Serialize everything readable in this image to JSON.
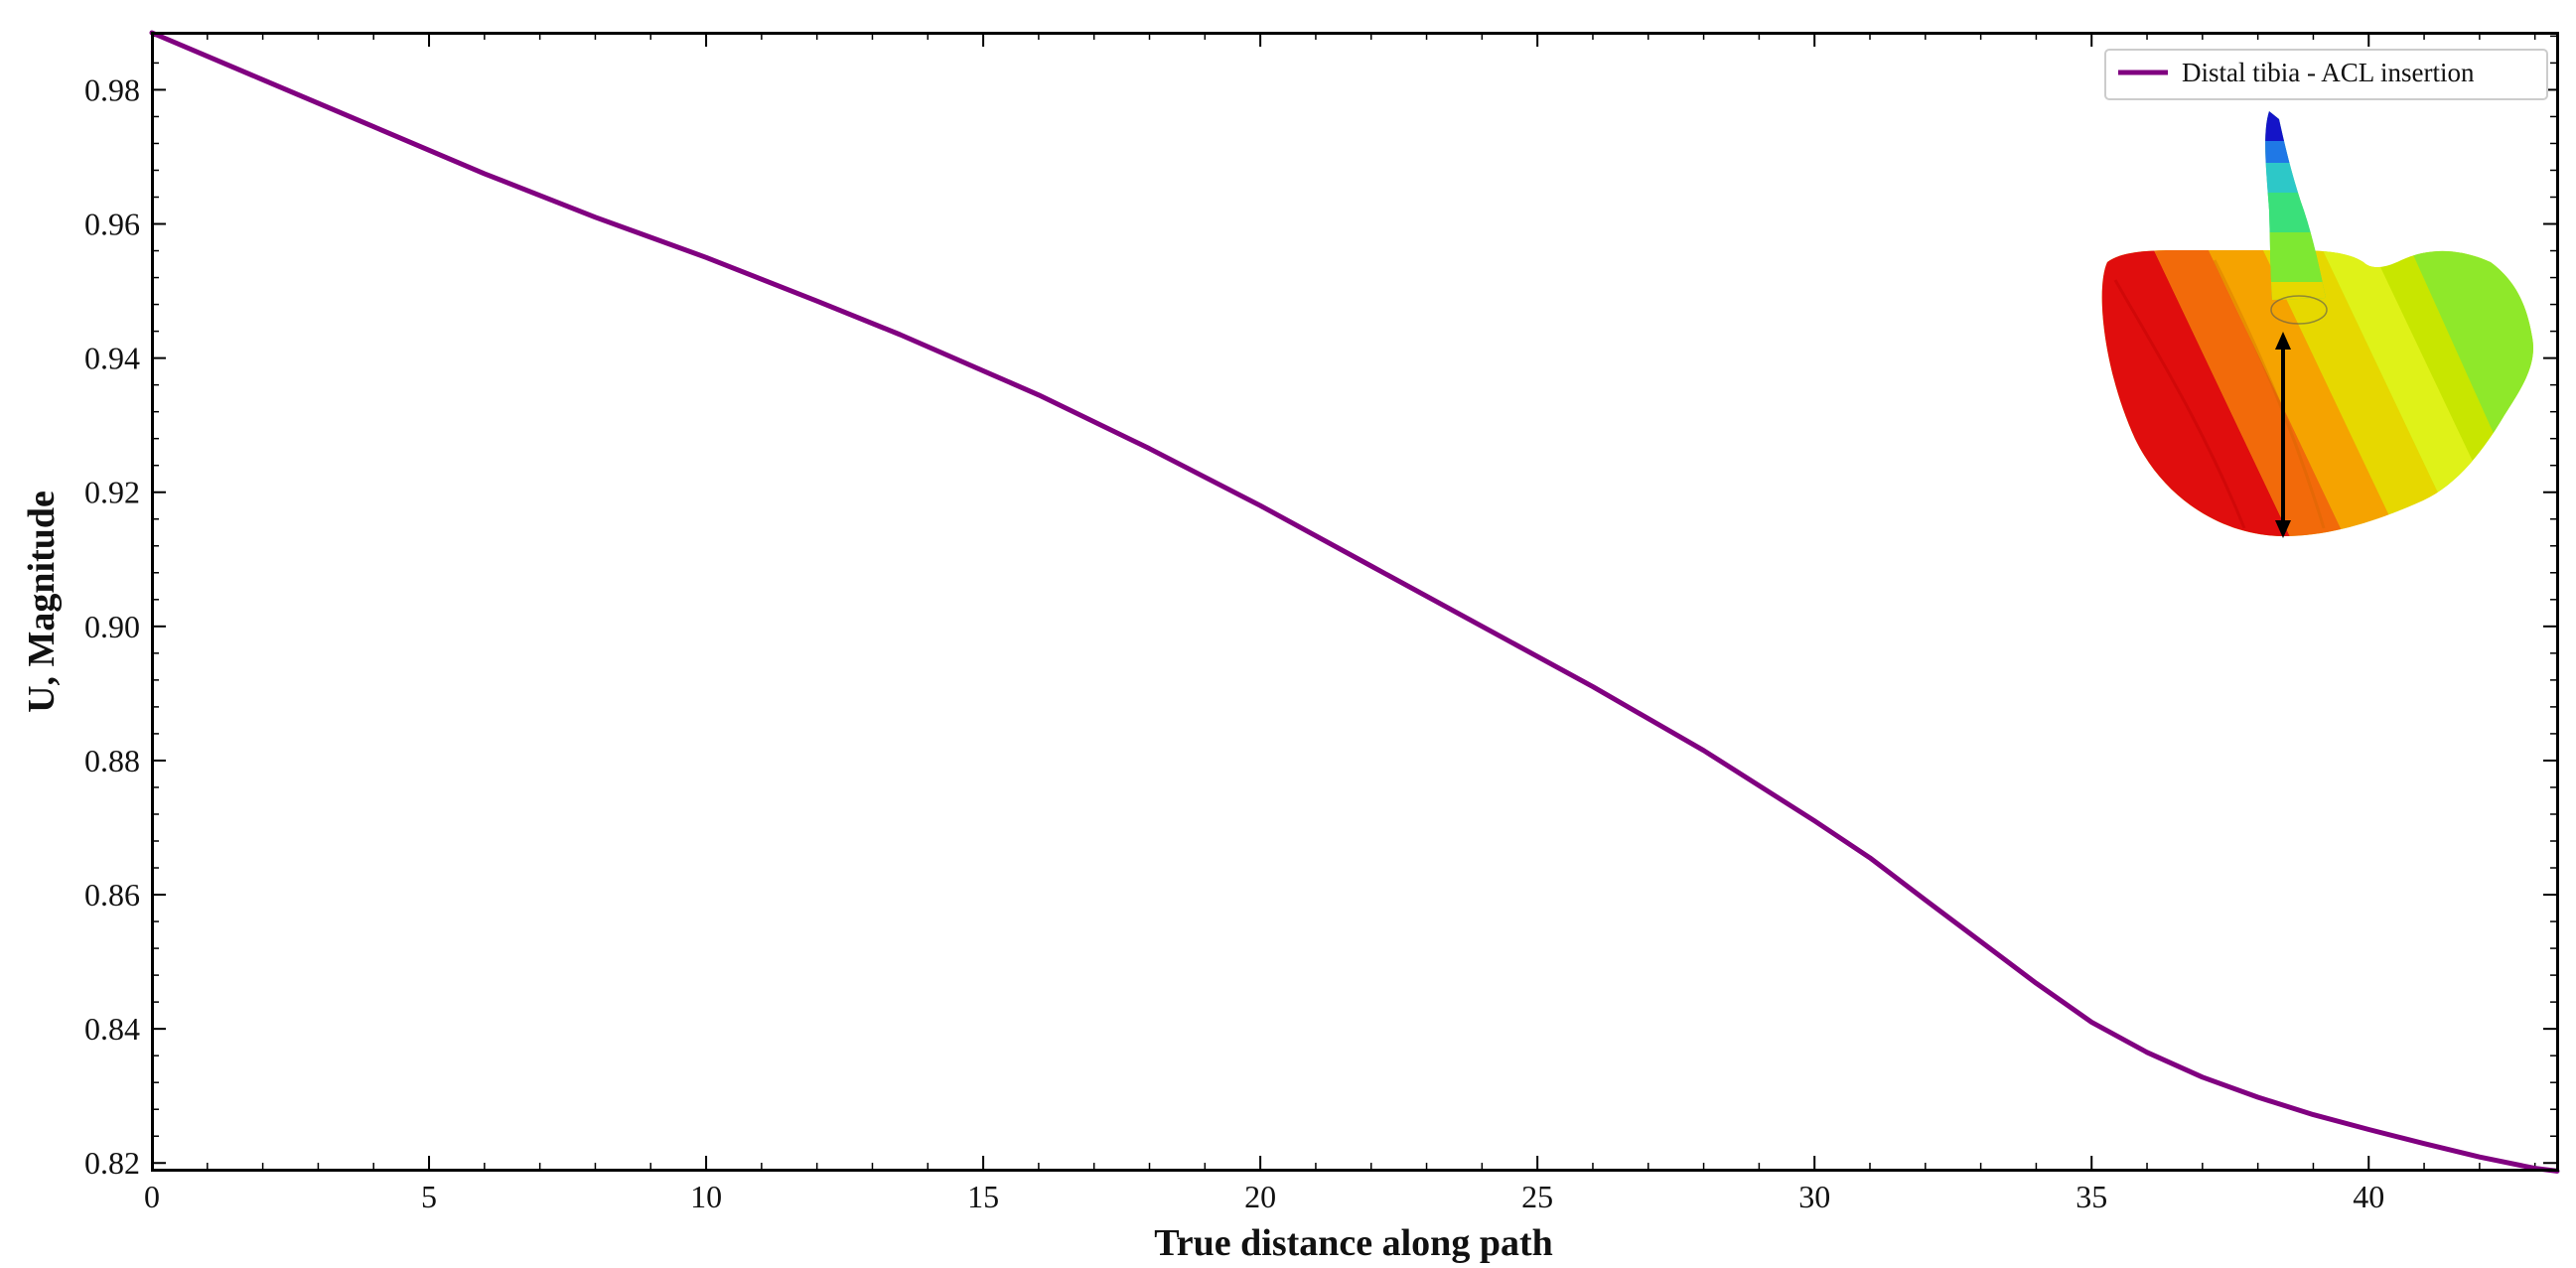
{
  "chart_data": {
    "type": "line",
    "xlabel": "True distance along path",
    "ylabel": "U, Magnitude",
    "xlim": [
      0,
      43.4
    ],
    "ylim": [
      0.819,
      0.9885
    ],
    "x_ticks": [
      0,
      5,
      10,
      15,
      20,
      25,
      30,
      35,
      40
    ],
    "y_ticks": [
      0.82,
      0.84,
      0.86,
      0.88,
      0.9,
      0.92,
      0.94,
      0.96,
      0.98
    ],
    "x_tick_labels": [
      "0",
      "5",
      "10",
      "15",
      "20",
      "25",
      "30",
      "35",
      "40"
    ],
    "y_tick_labels": [
      "0.82",
      "0.84",
      "0.86",
      "0.88",
      "0.90",
      "0.92",
      "0.94",
      "0.96",
      "0.98"
    ],
    "grid": false,
    "legend_position": "top-right",
    "series": [
      {
        "name": "Distal tibia - ACL insertion",
        "color": "#800080",
        "x": [
          0,
          2,
          4,
          6,
          8,
          10,
          12,
          13.5,
          16,
          18,
          20,
          22,
          24,
          26,
          28,
          30,
          31,
          32,
          33,
          34,
          35,
          36,
          37,
          38,
          39,
          40,
          41,
          42,
          43,
          43.4
        ],
        "y": [
          0.9885,
          0.9815,
          0.9745,
          0.9675,
          0.961,
          0.955,
          0.9485,
          0.9435,
          0.9345,
          0.9265,
          0.918,
          0.909,
          0.9,
          0.891,
          0.8815,
          0.871,
          0.8655,
          0.8592,
          0.853,
          0.8468,
          0.841,
          0.8365,
          0.8328,
          0.8298,
          0.8272,
          0.825,
          0.8229,
          0.8209,
          0.8192,
          0.8188
        ]
      }
    ]
  },
  "inset": {
    "icon": "tibia-displacement-contour-icon"
  }
}
